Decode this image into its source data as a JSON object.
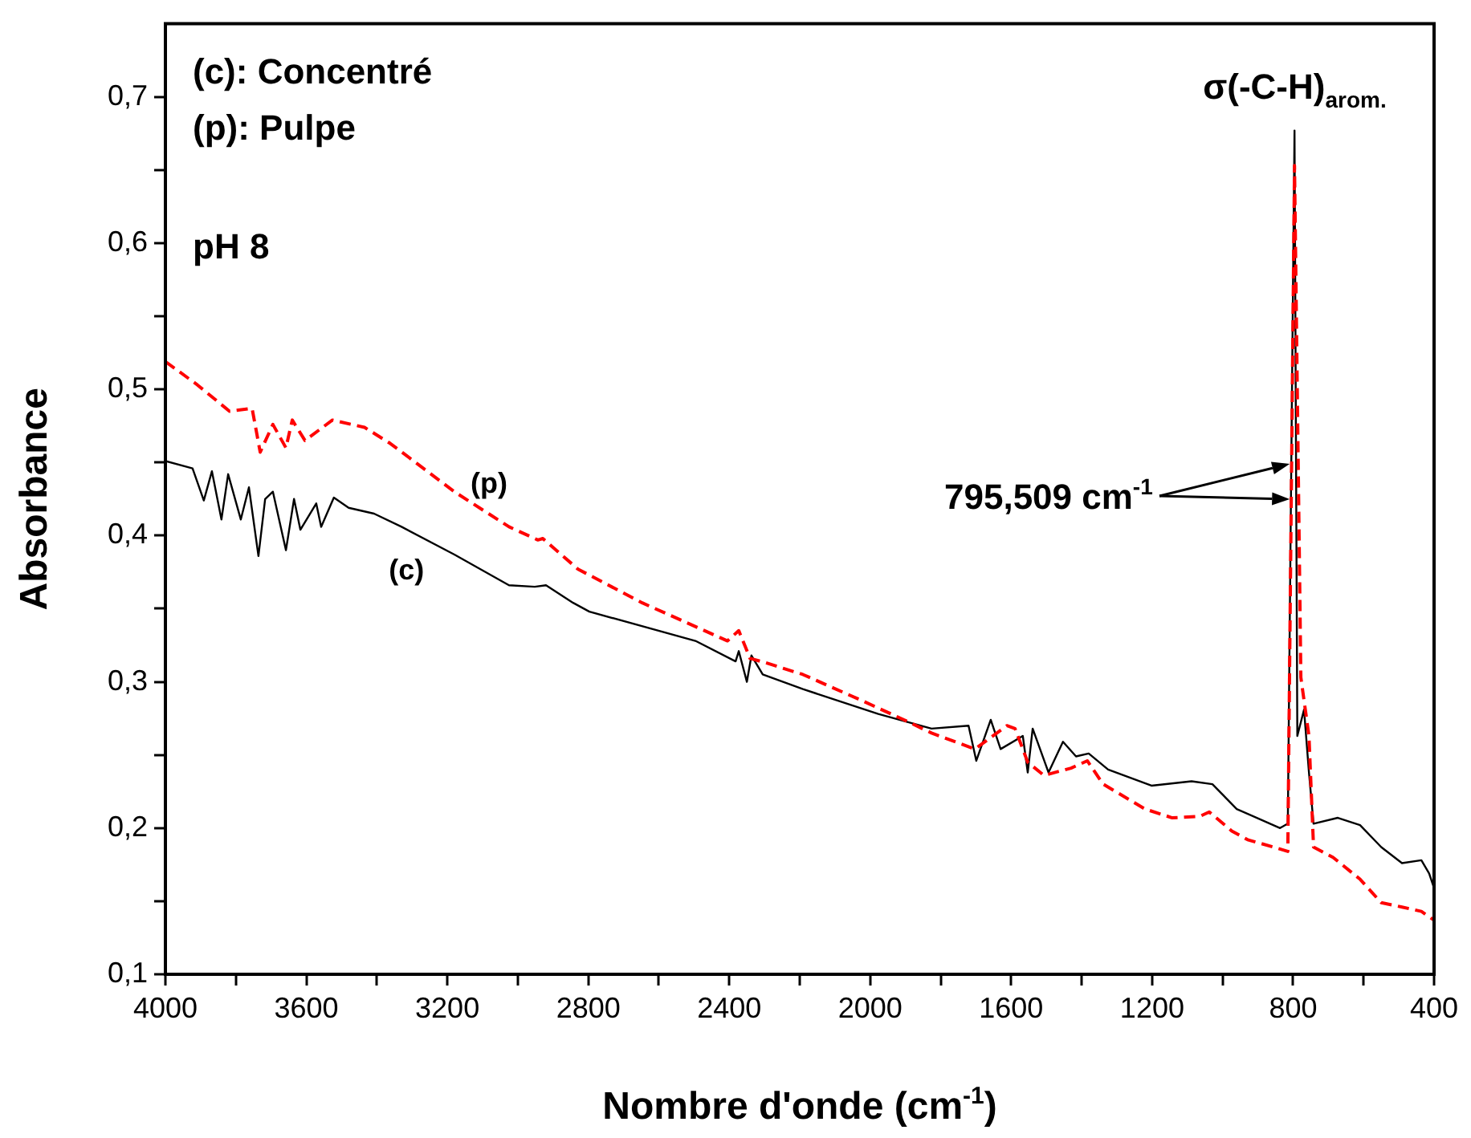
{
  "chart_data": {
    "type": "line",
    "xlabel": "Nombre d'onde (cm$^{-1}$)",
    "ylabel": "Absorbance",
    "xlim": [
      4000,
      400
    ],
    "ylim": [
      0.1,
      0.75
    ],
    "xticks": [
      4000,
      {
        "value": 3800,
        "label": null
      },
      3600,
      {
        "value": 3400,
        "label": null
      },
      3200,
      {
        "value": 3000,
        "label": null
      },
      2800,
      {
        "value": 2600,
        "label": null
      },
      2400,
      {
        "value": 2200,
        "label": null
      },
      2000,
      {
        "value": 1800,
        "label": null
      },
      1600,
      {
        "value": 1400,
        "label": null
      },
      1200,
      {
        "value": 1000,
        "label": null
      },
      800,
      {
        "value": 600,
        "label": null
      },
      400
    ],
    "yticks": [
      {
        "value": 0.1,
        "label": "0,1"
      },
      {
        "value": 0.15,
        "label": null
      },
      {
        "value": 0.2,
        "label": "0,2"
      },
      {
        "value": 0.25,
        "label": null
      },
      {
        "value": 0.3,
        "label": "0,3"
      },
      {
        "value": 0.35,
        "label": null
      },
      {
        "value": 0.4,
        "label": "0,4"
      },
      {
        "value": 0.45,
        "label": null
      },
      {
        "value": 0.5,
        "label": "0,5"
      },
      {
        "value": 0.55,
        "label": null
      },
      {
        "value": 0.6,
        "label": "0,6"
      },
      {
        "value": 0.65,
        "label": null
      },
      {
        "value": 0.7,
        "label": "0,7"
      }
    ],
    "series": [
      {
        "name": "(p)",
        "color": "#ff0000",
        "line_style": "dashed",
        "x": [
          4000,
          3909,
          3818,
          3754,
          3731,
          3695,
          3658,
          3640,
          3604,
          3526,
          3435,
          3362,
          3180,
          3025,
          2943,
          2929,
          2829,
          2647,
          2405,
          2373,
          2341,
          2296,
          2191,
          2022,
          1904,
          1826,
          1703,
          1612,
          1589,
          1553,
          1507,
          1430,
          1384,
          1339,
          1220,
          1143,
          1065,
          1038,
          974,
          929,
          856,
          815,
          796,
          778,
          755,
          742,
          687,
          610,
          550,
          491,
          436,
          400
        ],
        "values": [
          0.519,
          0.503,
          0.485,
          0.487,
          0.457,
          0.476,
          0.46,
          0.479,
          0.465,
          0.479,
          0.474,
          0.463,
          0.43,
          0.406,
          0.397,
          0.398,
          0.377,
          0.354,
          0.328,
          0.335,
          0.316,
          0.313,
          0.305,
          0.287,
          0.274,
          0.265,
          0.254,
          0.27,
          0.268,
          0.245,
          0.236,
          0.241,
          0.246,
          0.23,
          0.213,
          0.207,
          0.208,
          0.211,
          0.198,
          0.192,
          0.187,
          0.184,
          0.653,
          0.303,
          0.263,
          0.187,
          0.18,
          0.165,
          0.149,
          0.146,
          0.143,
          0.137
        ]
      },
      {
        "name": "(c)",
        "color": "#000000",
        "line_style": "solid",
        "x": [
          4000,
          3923,
          3891,
          3868,
          3841,
          3822,
          3786,
          3763,
          3736,
          3717,
          3695,
          3658,
          3635,
          3617,
          3572,
          3558,
          3522,
          3480,
          3408,
          3330,
          3180,
          3025,
          2952,
          2920,
          2843,
          2797,
          2496,
          2382,
          2373,
          2350,
          2337,
          2305,
          2191,
          1977,
          1826,
          1721,
          1699,
          1658,
          1630,
          1567,
          1553,
          1539,
          1494,
          1453,
          1416,
          1380,
          1325,
          1202,
          1088,
          1029,
          960,
          837,
          815,
          796,
          788,
          769,
          755,
          742,
          673,
          610,
          550,
          491,
          436,
          414,
          400
        ],
        "values": [
          0.451,
          0.446,
          0.424,
          0.444,
          0.411,
          0.442,
          0.411,
          0.433,
          0.386,
          0.425,
          0.43,
          0.39,
          0.425,
          0.404,
          0.422,
          0.406,
          0.426,
          0.419,
          0.415,
          0.406,
          0.387,
          0.366,
          0.365,
          0.366,
          0.354,
          0.348,
          0.328,
          0.314,
          0.321,
          0.3,
          0.318,
          0.305,
          0.295,
          0.278,
          0.268,
          0.27,
          0.246,
          0.274,
          0.254,
          0.263,
          0.238,
          0.268,
          0.238,
          0.259,
          0.249,
          0.251,
          0.24,
          0.229,
          0.232,
          0.23,
          0.213,
          0.2,
          0.203,
          0.677,
          0.263,
          0.281,
          0.238,
          0.203,
          0.207,
          0.202,
          0.187,
          0.176,
          0.178,
          0.169,
          0.159
        ]
      }
    ],
    "annotations": [
      "(c): Concentré",
      "(p): Pulpe",
      "pH 8",
      "795,509 cm$^{-1}$",
      {
        "text": "σ(-C-H)$_{arom.}$",
        "x": 795.509,
        "y": 0.677
      }
    ]
  }
}
